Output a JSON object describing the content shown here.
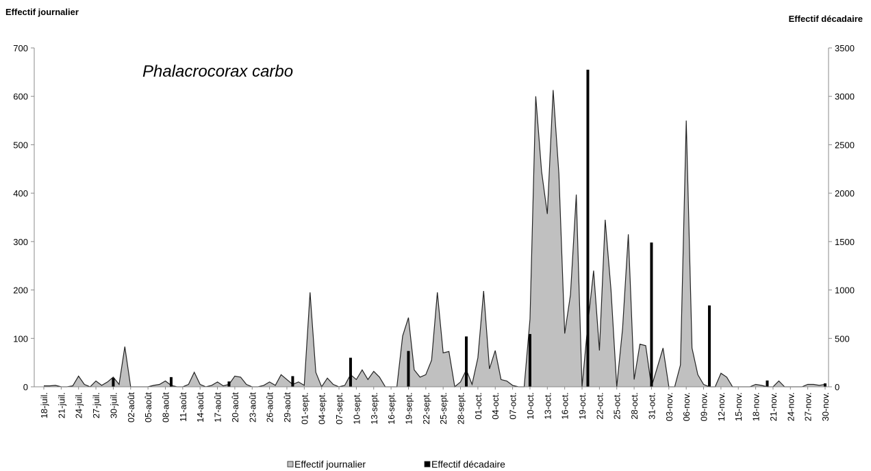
{
  "chart_data": {
    "type": "area_bar",
    "ylabel": "Effectif journalier",
    "y2label": "Effectif décadaire",
    "annotation": "Phalacrocorax carbo",
    "ylim": [
      0,
      700
    ],
    "yticks": [
      0,
      100,
      200,
      300,
      400,
      500,
      600,
      700
    ],
    "y2lim": [
      0,
      3500
    ],
    "y2ticks": [
      0,
      500,
      1000,
      1500,
      2000,
      2500,
      3000,
      3500
    ],
    "categories": [
      "18-juil.",
      null,
      null,
      "21-juil.",
      null,
      null,
      "24-juil.",
      null,
      null,
      "27-juil.",
      null,
      null,
      "30-juil.",
      null,
      null,
      "02-août",
      null,
      null,
      "05-août",
      null,
      null,
      "08-août",
      null,
      null,
      "11-août",
      null,
      null,
      "14-août",
      null,
      null,
      "17-août",
      null,
      null,
      "20-août",
      null,
      null,
      "23-août",
      null,
      null,
      "26-août",
      null,
      null,
      "29-août",
      null,
      null,
      "01-sept.",
      null,
      null,
      "04-sept.",
      null,
      null,
      "07-sept.",
      null,
      null,
      "10-sept.",
      null,
      null,
      "13-sept.",
      null,
      null,
      "16-sept.",
      null,
      null,
      "19-sept.",
      null,
      null,
      "22-sept.",
      null,
      null,
      "25-sept.",
      null,
      null,
      "28-sept.",
      null,
      null,
      "01-oct.",
      null,
      null,
      "04-oct.",
      null,
      null,
      "07-oct.",
      null,
      null,
      "10-oct.",
      null,
      null,
      "13-oct.",
      null,
      null,
      "16-oct.",
      null,
      null,
      "19-oct.",
      null,
      null,
      "22-oct.",
      null,
      null,
      "25-oct.",
      null,
      null,
      "28-oct.",
      null,
      null,
      "31-oct.",
      null,
      null,
      "03-nov.",
      null,
      null,
      "06-nov.",
      null,
      null,
      "09-nov.",
      null,
      null,
      "12-nov.",
      null,
      null,
      "15-nov.",
      null,
      null,
      "18-nov.",
      null,
      null,
      "21-nov.",
      null,
      null,
      "24-nov.",
      null,
      null,
      "27-nov.",
      null,
      null,
      "30-nov."
    ],
    "series": [
      {
        "name": "Effectif journalier",
        "kind": "area",
        "color": "#c0c0c0",
        "values": [
          2,
          2,
          3,
          0,
          0,
          2,
          22,
          5,
          0,
          12,
          3,
          10,
          20,
          5,
          83,
          0,
          0,
          0,
          0,
          3,
          5,
          12,
          3,
          0,
          0,
          5,
          30,
          5,
          0,
          3,
          10,
          2,
          5,
          22,
          20,
          5,
          0,
          0,
          3,
          10,
          3,
          25,
          15,
          5,
          10,
          3,
          195,
          30,
          0,
          18,
          5,
          0,
          3,
          25,
          15,
          35,
          15,
          32,
          20,
          0,
          0,
          0,
          105,
          143,
          35,
          20,
          25,
          55,
          195,
          70,
          73,
          0,
          10,
          35,
          5,
          60,
          198,
          37,
          75,
          15,
          12,
          3,
          0,
          0,
          140,
          600,
          445,
          357,
          613,
          440,
          110,
          190,
          397,
          0,
          130,
          240,
          75,
          345,
          200,
          0,
          120,
          315,
          15,
          88,
          85,
          0,
          40,
          80,
          0,
          0,
          45,
          550,
          80,
          25,
          5,
          0,
          0,
          28,
          20,
          0,
          0,
          0,
          0,
          5,
          3,
          0,
          0,
          12,
          0,
          0,
          0,
          0,
          5,
          5,
          3,
          5
        ]
      },
      {
        "name": "Effectif décadaire",
        "kind": "bar",
        "axis": "y2",
        "color": "#000000",
        "values": [
          null,
          null,
          null,
          null,
          null,
          null,
          null,
          null,
          null,
          null,
          null,
          null,
          90,
          null,
          null,
          null,
          null,
          null,
          null,
          null,
          null,
          null,
          100,
          null,
          null,
          null,
          null,
          null,
          null,
          null,
          null,
          null,
          55,
          null,
          null,
          null,
          null,
          null,
          null,
          null,
          null,
          null,
          null,
          110,
          null,
          null,
          null,
          null,
          null,
          null,
          null,
          null,
          null,
          300,
          null,
          null,
          null,
          null,
          null,
          null,
          null,
          null,
          null,
          370,
          null,
          null,
          null,
          null,
          null,
          null,
          null,
          null,
          null,
          520,
          null,
          null,
          null,
          null,
          null,
          null,
          null,
          null,
          null,
          null,
          545,
          null,
          null,
          null,
          null,
          null,
          null,
          null,
          null,
          null,
          3275,
          null,
          null,
          null,
          null,
          null,
          null,
          null,
          null,
          null,
          null,
          1490,
          null,
          null,
          null,
          null,
          null,
          null,
          null,
          null,
          null,
          840,
          null,
          null,
          null,
          null,
          null,
          null,
          null,
          null,
          null,
          65,
          null,
          null,
          null,
          null,
          null,
          null,
          null,
          null,
          null,
          35
        ]
      }
    ]
  }
}
